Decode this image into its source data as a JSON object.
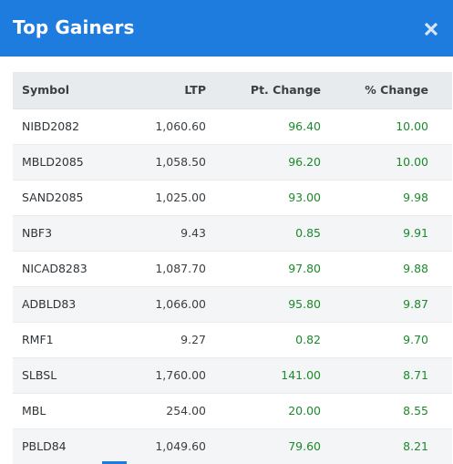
{
  "modal": {
    "title": "Top Gainers",
    "close_icon": "close-icon"
  },
  "colors": {
    "header_bg": "#1e7cdf",
    "positive": "#1b8a2b",
    "table_header_bg": "#e7ebee",
    "row_alt_bg": "#f4f5f6"
  },
  "table": {
    "columns": [
      "Symbol",
      "LTP",
      "Pt. Change",
      "% Change"
    ],
    "rows": [
      {
        "symbol": "NIBD2082",
        "ltp": "1,060.60",
        "pt_change": "96.40",
        "pct_change": "10.00"
      },
      {
        "symbol": "MBLD2085",
        "ltp": "1,058.50",
        "pt_change": "96.20",
        "pct_change": "10.00"
      },
      {
        "symbol": "SAND2085",
        "ltp": "1,025.00",
        "pt_change": "93.00",
        "pct_change": "9.98"
      },
      {
        "symbol": "NBF3",
        "ltp": "9.43",
        "pt_change": "0.85",
        "pct_change": "9.91"
      },
      {
        "symbol": "NICAD8283",
        "ltp": "1,087.70",
        "pt_change": "97.80",
        "pct_change": "9.88"
      },
      {
        "symbol": "ADBLD83",
        "ltp": "1,066.00",
        "pt_change": "95.80",
        "pct_change": "9.87"
      },
      {
        "symbol": "RMF1",
        "ltp": "9.27",
        "pt_change": "0.82",
        "pct_change": "9.70"
      },
      {
        "symbol": "SLBSL",
        "ltp": "1,760.00",
        "pt_change": "141.00",
        "pct_change": "8.71"
      },
      {
        "symbol": "MBL",
        "ltp": "254.00",
        "pt_change": "20.00",
        "pct_change": "8.55"
      },
      {
        "symbol": "PBLD84",
        "ltp": "1,049.60",
        "pt_change": "79.60",
        "pct_change": "8.21"
      }
    ]
  }
}
